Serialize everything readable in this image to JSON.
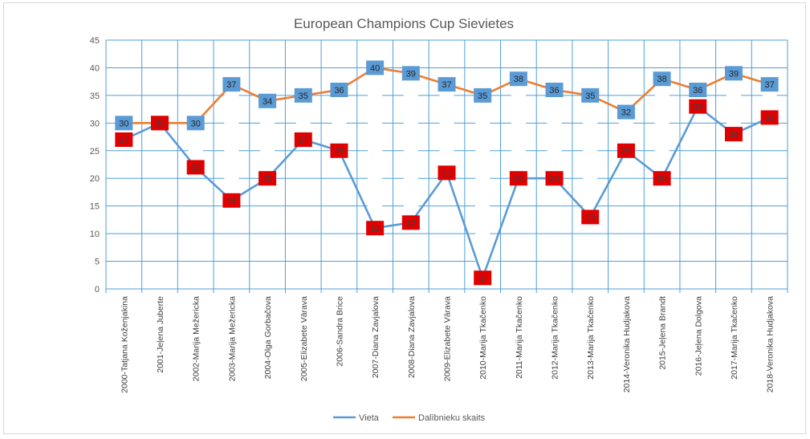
{
  "chart_data": {
    "type": "line",
    "title": "European Champions Cup Sievietes",
    "xlabel": "",
    "ylabel": "",
    "ylim": [
      0,
      45
    ],
    "yticks": [
      0,
      5,
      10,
      15,
      20,
      25,
      30,
      35,
      40,
      45
    ],
    "grid": true,
    "legend_position": "bottom",
    "categories": [
      "2000-Tatjana Koženjakina",
      "2001-Jeļena Juberte",
      "2002-Marija Mežericka",
      "2003-Marija Mežericka",
      "2004-Olga Gorbačova",
      "2005-Elizabete Vārava",
      "2006-Sandra Brice",
      "2007-Diana Zavjalova",
      "2008-Diana Zavjalova",
      "2009-Elizabete Vārava",
      "2010-Marija Tkačenko",
      "2011-Marija Tkačenko",
      "2012-Marija Tkačenko",
      "2013-Marija Tkačenko",
      "2014-Veronika Hudjakova",
      "2015-Jeļena Brandt",
      "2016-Jeļena Dolgova",
      "2017-Marija Tkačenko",
      "2018-Veronika Hudjakova"
    ],
    "series": [
      {
        "name": "Vieta",
        "color": "#5b9bd5",
        "label_color": "#e00000",
        "values": [
          27,
          30,
          22,
          16,
          20,
          27,
          25,
          11,
          12,
          21,
          2,
          20,
          20,
          13,
          25,
          20,
          33,
          28,
          31
        ]
      },
      {
        "name": "Dalībnieku skaits",
        "color": "#ed7d31",
        "label_color": "#5b9bd5",
        "values": [
          30,
          30,
          30,
          37,
          34,
          35,
          36,
          40,
          39,
          37,
          35,
          38,
          36,
          35,
          32,
          38,
          36,
          39,
          37
        ]
      }
    ]
  }
}
